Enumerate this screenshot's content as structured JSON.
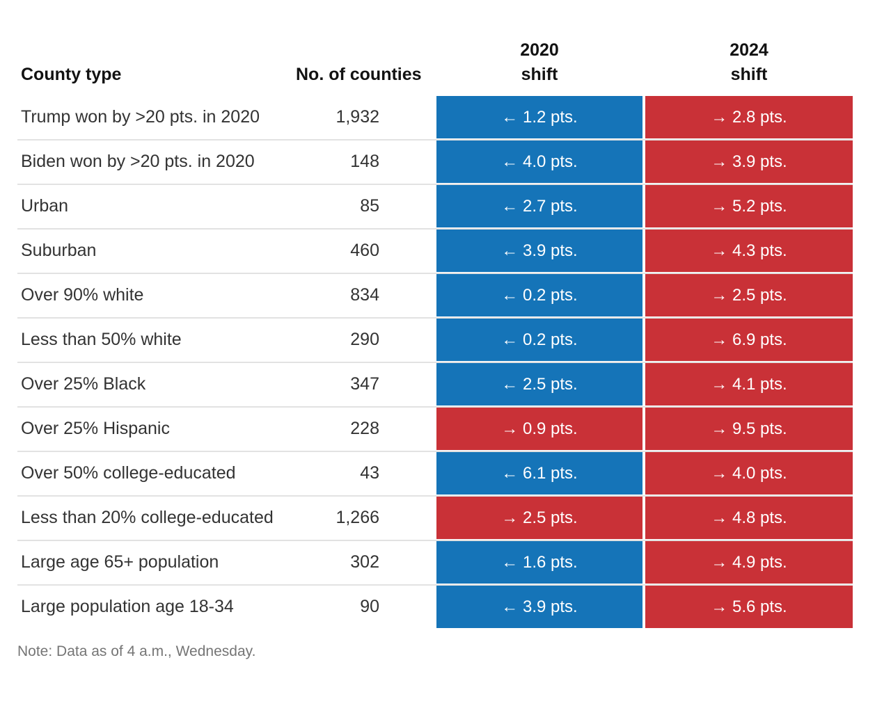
{
  "colors": {
    "dem": "#1574B8",
    "rep": "#C93137",
    "divider": "#E2E2E2",
    "header_text": "#121212",
    "label_text": "#333333",
    "note_text": "#757575",
    "cell_text": "#FFFFFF"
  },
  "header": {
    "county_type": "County type",
    "no_of_counties": "No. of counties",
    "shift_2020_line1": "2020",
    "shift_2020_line2": "shift",
    "shift_2024_line1": "2024",
    "shift_2024_line2": "shift"
  },
  "table": {
    "rows": [
      {
        "label": "Trump won by >20 pts. in 2020",
        "count": "1,932",
        "shift_2020": {
          "text": "← 1.2 pts.",
          "party": "dem"
        },
        "shift_2024": {
          "text": "→ 2.8 pts.",
          "party": "rep"
        }
      },
      {
        "label": "Biden won by >20 pts. in 2020",
        "count": "148",
        "shift_2020": {
          "text": "← 4.0 pts.",
          "party": "dem"
        },
        "shift_2024": {
          "text": "→ 3.9 pts.",
          "party": "rep"
        }
      },
      {
        "label": "Urban",
        "count": "85",
        "shift_2020": {
          "text": "← 2.7 pts.",
          "party": "dem"
        },
        "shift_2024": {
          "text": "→ 5.2 pts.",
          "party": "rep"
        }
      },
      {
        "label": "Suburban",
        "count": "460",
        "shift_2020": {
          "text": "← 3.9 pts.",
          "party": "dem"
        },
        "shift_2024": {
          "text": "→ 4.3 pts.",
          "party": "rep"
        }
      },
      {
        "label": "Over 90% white",
        "count": "834",
        "shift_2020": {
          "text": "← 0.2 pts.",
          "party": "dem"
        },
        "shift_2024": {
          "text": "→ 2.5 pts.",
          "party": "rep"
        }
      },
      {
        "label": "Less than 50% white",
        "count": "290",
        "shift_2020": {
          "text": "← 0.2 pts.",
          "party": "dem"
        },
        "shift_2024": {
          "text": "→ 6.9 pts.",
          "party": "rep"
        }
      },
      {
        "label": "Over 25% Black",
        "count": "347",
        "shift_2020": {
          "text": "← 2.5 pts.",
          "party": "dem"
        },
        "shift_2024": {
          "text": "→ 4.1 pts.",
          "party": "rep"
        }
      },
      {
        "label": "Over 25% Hispanic",
        "count": "228",
        "shift_2020": {
          "text": "→ 0.9 pts.",
          "party": "rep"
        },
        "shift_2024": {
          "text": "→ 9.5 pts.",
          "party": "rep"
        }
      },
      {
        "label": "Over 50% college-educated",
        "count": "43",
        "shift_2020": {
          "text": "← 6.1 pts.",
          "party": "dem"
        },
        "shift_2024": {
          "text": "→ 4.0 pts.",
          "party": "rep"
        }
      },
      {
        "label": "Less than 20% college-educated",
        "count": "1,266",
        "shift_2020": {
          "text": "→ 2.5 pts.",
          "party": "rep"
        },
        "shift_2024": {
          "text": "→ 4.8 pts.",
          "party": "rep"
        }
      },
      {
        "label": "Large age 65+ population",
        "count": "302",
        "shift_2020": {
          "text": "← 1.6 pts.",
          "party": "dem"
        },
        "shift_2024": {
          "text": "→ 4.9 pts.",
          "party": "rep"
        }
      },
      {
        "label": "Large population age 18-34",
        "count": "90",
        "shift_2020": {
          "text": "← 3.9 pts.",
          "party": "dem"
        },
        "shift_2024": {
          "text": "→ 5.6 pts.",
          "party": "rep"
        }
      }
    ]
  },
  "note": "Note: Data as of 4 a.m., Wednesday.",
  "chart_data": {
    "type": "table",
    "columns": [
      "County type",
      "No. of counties",
      "2020 shift",
      "2024 shift"
    ],
    "legend": {
      "dem_shift_color": "#1574B8",
      "rep_shift_color": "#C93137",
      "left_arrow": "shift toward Democrats",
      "right_arrow": "shift toward Republicans"
    },
    "rows": [
      {
        "county_type": "Trump won by >20 pts. in 2020",
        "counties": 1932,
        "shift_2020_pts": 1.2,
        "shift_2020_dir": "D",
        "shift_2024_pts": 2.8,
        "shift_2024_dir": "R"
      },
      {
        "county_type": "Biden won by >20 pts. in 2020",
        "counties": 148,
        "shift_2020_pts": 4.0,
        "shift_2020_dir": "D",
        "shift_2024_pts": 3.9,
        "shift_2024_dir": "R"
      },
      {
        "county_type": "Urban",
        "counties": 85,
        "shift_2020_pts": 2.7,
        "shift_2020_dir": "D",
        "shift_2024_pts": 5.2,
        "shift_2024_dir": "R"
      },
      {
        "county_type": "Suburban",
        "counties": 460,
        "shift_2020_pts": 3.9,
        "shift_2020_dir": "D",
        "shift_2024_pts": 4.3,
        "shift_2024_dir": "R"
      },
      {
        "county_type": "Over 90% white",
        "counties": 834,
        "shift_2020_pts": 0.2,
        "shift_2020_dir": "D",
        "shift_2024_pts": 2.5,
        "shift_2024_dir": "R"
      },
      {
        "county_type": "Less than 50% white",
        "counties": 290,
        "shift_2020_pts": 0.2,
        "shift_2020_dir": "D",
        "shift_2024_pts": 6.9,
        "shift_2024_dir": "R"
      },
      {
        "county_type": "Over 25% Black",
        "counties": 347,
        "shift_2020_pts": 2.5,
        "shift_2020_dir": "D",
        "shift_2024_pts": 4.1,
        "shift_2024_dir": "R"
      },
      {
        "county_type": "Over 25% Hispanic",
        "counties": 228,
        "shift_2020_pts": 0.9,
        "shift_2020_dir": "R",
        "shift_2024_pts": 9.5,
        "shift_2024_dir": "R"
      },
      {
        "county_type": "Over 50% college-educated",
        "counties": 43,
        "shift_2020_pts": 6.1,
        "shift_2020_dir": "D",
        "shift_2024_pts": 4.0,
        "shift_2024_dir": "R"
      },
      {
        "county_type": "Less than 20% college-educated",
        "counties": 1266,
        "shift_2020_pts": 2.5,
        "shift_2020_dir": "R",
        "shift_2024_pts": 4.8,
        "shift_2024_dir": "R"
      },
      {
        "county_type": "Large age 65+ population",
        "counties": 302,
        "shift_2020_pts": 1.6,
        "shift_2020_dir": "D",
        "shift_2024_pts": 4.9,
        "shift_2024_dir": "R"
      },
      {
        "county_type": "Large population age 18-34",
        "counties": 90,
        "shift_2020_pts": 3.9,
        "shift_2020_dir": "D",
        "shift_2024_pts": 5.6,
        "shift_2024_dir": "R"
      }
    ]
  }
}
